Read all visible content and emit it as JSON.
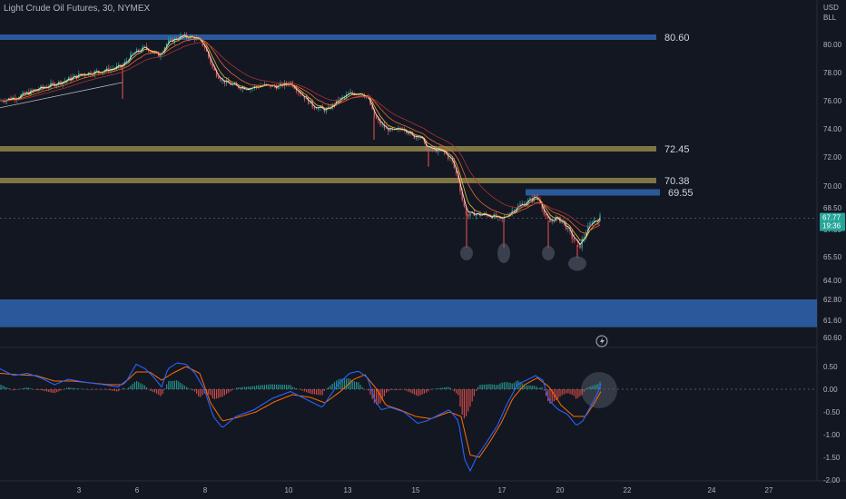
{
  "header": {
    "title": "Light Crude Oil Futures, 30, NYMEX",
    "currency": "USD",
    "unit": "BLL"
  },
  "chart_data": [
    {
      "type": "candlestick",
      "title": "Light Crude Oil Futures, 30, NYMEX",
      "ylim": [
        59.9,
        81.9
      ],
      "y_ticks": [
        "80.00",
        "78.00",
        "76.00",
        "74.00",
        "72.00",
        "70.00",
        "68.50",
        "67.00",
        "65.50",
        "64.00",
        "62.80",
        "61.60",
        "60.60"
      ],
      "x_ticks": [
        "3",
        "6",
        "8",
        "10",
        "13",
        "15",
        "17",
        "20",
        "22",
        "24",
        "27"
      ],
      "price_path": [
        [
          0,
          76.0
        ],
        [
          20,
          76.3
        ],
        [
          40,
          76.8
        ],
        [
          55,
          77.1
        ],
        [
          70,
          77.4
        ],
        [
          90,
          77.9
        ],
        [
          110,
          78.1
        ],
        [
          125,
          78.3
        ],
        [
          135,
          78.5
        ],
        [
          145,
          79.3
        ],
        [
          160,
          79.8
        ],
        [
          175,
          79.2
        ],
        [
          185,
          80.2
        ],
        [
          200,
          80.6
        ],
        [
          215,
          80.5
        ],
        [
          225,
          79.9
        ],
        [
          235,
          78.2
        ],
        [
          245,
          77.4
        ],
        [
          260,
          77.0
        ],
        [
          275,
          76.9
        ],
        [
          290,
          77.1
        ],
        [
          305,
          77.0
        ],
        [
          320,
          77.3
        ],
        [
          330,
          76.6
        ],
        [
          345,
          75.6
        ],
        [
          360,
          75.3
        ],
        [
          372,
          76.0
        ],
        [
          385,
          76.5
        ],
        [
          398,
          76.6
        ],
        [
          406,
          76.1
        ],
        [
          412,
          74.9
        ],
        [
          418,
          74.4
        ],
        [
          425,
          74.0
        ],
        [
          435,
          73.8
        ],
        [
          445,
          74.1
        ],
        [
          455,
          73.4
        ],
        [
          462,
          73.6
        ],
        [
          470,
          72.6
        ],
        [
          480,
          72.5
        ],
        [
          490,
          72.3
        ],
        [
          498,
          71.7
        ],
        [
          505,
          70.4
        ],
        [
          510,
          68.8
        ],
        [
          515,
          67.9
        ],
        [
          522,
          68.1
        ],
        [
          530,
          68.0
        ],
        [
          538,
          68.0
        ],
        [
          545,
          67.9
        ],
        [
          552,
          67.6
        ],
        [
          560,
          68.1
        ],
        [
          570,
          68.6
        ],
        [
          580,
          68.9
        ],
        [
          590,
          69.3
        ],
        [
          596,
          68.9
        ],
        [
          600,
          67.9
        ],
        [
          606,
          67.5
        ],
        [
          612,
          67.8
        ],
        [
          620,
          67.5
        ],
        [
          630,
          66.6
        ],
        [
          638,
          66.0
        ],
        [
          645,
          66.8
        ],
        [
          652,
          67.6
        ],
        [
          658,
          67.7
        ],
        [
          662,
          67.9
        ]
      ],
      "levels": [
        {
          "label": "80.60",
          "value": 80.6,
          "color": "#2f5fa7",
          "extent": "partial"
        },
        {
          "label": "72.45",
          "value": 72.45,
          "color": "#8a8148",
          "extent": "partial"
        },
        {
          "label": "70.38",
          "value": 70.38,
          "color": "#8a8148",
          "extent": "partial"
        },
        {
          "label": "69.55",
          "value": 69.55,
          "color": "#2f5fa7",
          "extent": "partial"
        }
      ],
      "support_zone": {
        "low": 61.2,
        "high": 62.8,
        "color": "#2f5fa7"
      },
      "last_price": {
        "value": "67.77",
        "countdown": "19:36",
        "color": "#26a69a"
      },
      "moving_averages": [
        {
          "color": "#f2f2f2"
        },
        {
          "color": "#f5c431"
        },
        {
          "color": "#ef6c3e"
        },
        {
          "color": "#b03535"
        }
      ],
      "marked_lows": [
        65.9,
        65.9,
        65.9,
        65.3
      ],
      "trendline": {
        "from": 75.5,
        "to": 77.3
      }
    },
    {
      "type": "macd",
      "ylim": [
        -2.2,
        0.75
      ],
      "y_ticks": [
        "0.50",
        "0.00",
        "-0.50",
        "-1.00",
        "-1.50",
        "-2.00"
      ],
      "macd_path": [
        [
          0,
          0.45
        ],
        [
          15,
          0.3
        ],
        [
          30,
          0.35
        ],
        [
          45,
          0.25
        ],
        [
          60,
          0.1
        ],
        [
          75,
          0.22
        ],
        [
          95,
          0.15
        ],
        [
          115,
          0.1
        ],
        [
          130,
          0.05
        ],
        [
          140,
          0.2
        ],
        [
          150,
          0.55
        ],
        [
          160,
          0.45
        ],
        [
          170,
          0.25
        ],
        [
          178,
          0.05
        ],
        [
          185,
          0.45
        ],
        [
          195,
          0.58
        ],
        [
          205,
          0.55
        ],
        [
          215,
          0.35
        ],
        [
          225,
          0.0
        ],
        [
          235,
          -0.6
        ],
        [
          245,
          -0.85
        ],
        [
          260,
          -0.6
        ],
        [
          280,
          -0.45
        ],
        [
          300,
          -0.2
        ],
        [
          320,
          -0.05
        ],
        [
          340,
          -0.25
        ],
        [
          355,
          -0.4
        ],
        [
          372,
          0.1
        ],
        [
          385,
          0.35
        ],
        [
          395,
          0.4
        ],
        [
          405,
          0.25
        ],
        [
          413,
          -0.25
        ],
        [
          420,
          -0.45
        ],
        [
          430,
          -0.4
        ],
        [
          445,
          -0.5
        ],
        [
          460,
          -0.75
        ],
        [
          470,
          -0.7
        ],
        [
          480,
          -0.6
        ],
        [
          495,
          -0.45
        ],
        [
          505,
          -0.7
        ],
        [
          512,
          -1.55
        ],
        [
          518,
          -1.8
        ],
        [
          525,
          -1.5
        ],
        [
          535,
          -1.2
        ],
        [
          548,
          -0.8
        ],
        [
          558,
          -0.35
        ],
        [
          570,
          0.1
        ],
        [
          580,
          0.2
        ],
        [
          590,
          0.3
        ],
        [
          598,
          0.2
        ],
        [
          605,
          -0.25
        ],
        [
          615,
          -0.45
        ],
        [
          625,
          -0.55
        ],
        [
          635,
          -0.8
        ],
        [
          642,
          -0.7
        ],
        [
          650,
          -0.4
        ],
        [
          658,
          -0.1
        ],
        [
          662,
          0.12
        ]
      ],
      "signal_path": [
        [
          0,
          0.35
        ],
        [
          20,
          0.32
        ],
        [
          40,
          0.3
        ],
        [
          60,
          0.18
        ],
        [
          80,
          0.18
        ],
        [
          100,
          0.14
        ],
        [
          120,
          0.1
        ],
        [
          135,
          0.1
        ],
        [
          150,
          0.38
        ],
        [
          165,
          0.38
        ],
        [
          178,
          0.2
        ],
        [
          190,
          0.35
        ],
        [
          205,
          0.5
        ],
        [
          220,
          0.35
        ],
        [
          232,
          -0.3
        ],
        [
          245,
          -0.7
        ],
        [
          262,
          -0.62
        ],
        [
          282,
          -0.5
        ],
        [
          302,
          -0.28
        ],
        [
          322,
          -0.12
        ],
        [
          342,
          -0.18
        ],
        [
          358,
          -0.3
        ],
        [
          375,
          -0.05
        ],
        [
          390,
          0.22
        ],
        [
          402,
          0.32
        ],
        [
          415,
          0.0
        ],
        [
          425,
          -0.35
        ],
        [
          440,
          -0.45
        ],
        [
          458,
          -0.6
        ],
        [
          475,
          -0.65
        ],
        [
          495,
          -0.5
        ],
        [
          508,
          -0.6
        ],
        [
          518,
          -1.45
        ],
        [
          528,
          -1.5
        ],
        [
          540,
          -1.15
        ],
        [
          552,
          -0.75
        ],
        [
          565,
          -0.2
        ],
        [
          578,
          0.1
        ],
        [
          592,
          0.25
        ],
        [
          605,
          0.05
        ],
        [
          618,
          -0.35
        ],
        [
          632,
          -0.6
        ],
        [
          645,
          -0.6
        ],
        [
          655,
          -0.3
        ],
        [
          662,
          -0.05
        ]
      ],
      "macd_color": "#2962ff",
      "signal_color": "#ff6d00",
      "hist_up_color": "#26a69a",
      "hist_down_color": "#ef5350"
    }
  ]
}
